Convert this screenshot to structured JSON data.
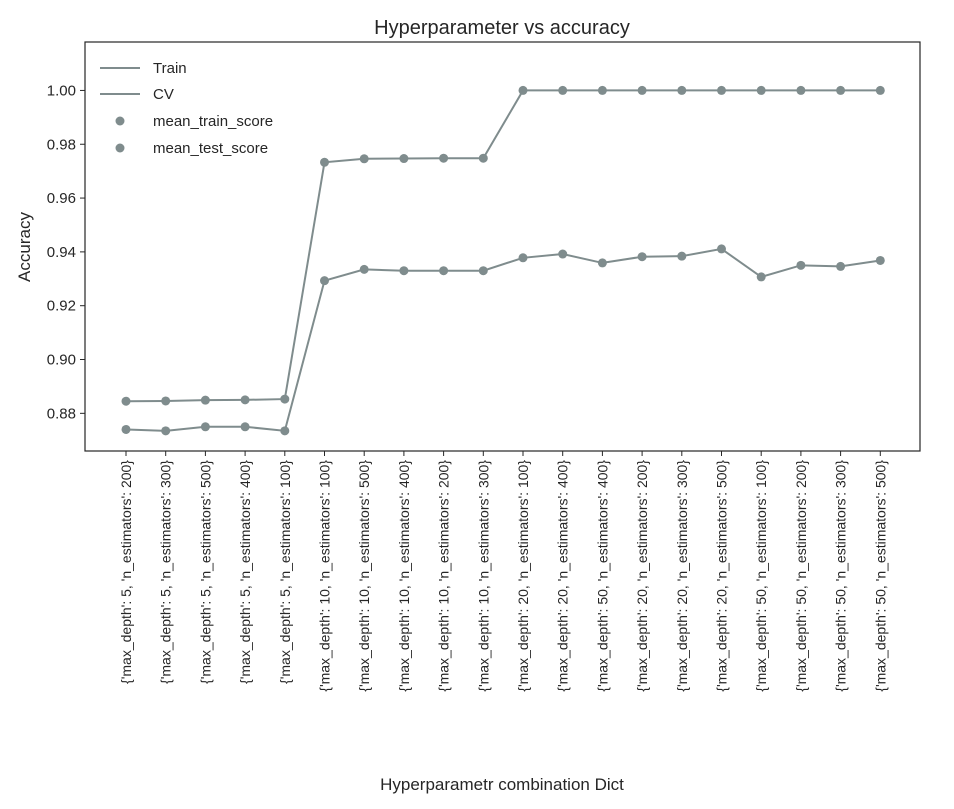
{
  "chart_data": {
    "type": "line",
    "title": "Hyperparameter vs accuracy",
    "xlabel": "Hyperparametr combination Dict",
    "ylabel": "Accuracy",
    "ylim": [
      0.866,
      1.018
    ],
    "yticks": [
      0.88,
      0.9,
      0.92,
      0.94,
      0.96,
      0.98,
      1.0
    ],
    "ytick_labels": [
      "0.88",
      "0.90",
      "0.92",
      "0.94",
      "0.96",
      "0.98",
      "1.00"
    ],
    "grid": false,
    "legend_position": "top-left",
    "colors": {
      "series": "#7f8c8d",
      "axes": "#262626"
    },
    "categories": [
      "{'max_depth': 5, 'n_estimators': 200}",
      "{'max_depth': 5, 'n_estimators': 300}",
      "{'max_depth': 5, 'n_estimators': 500}",
      "{'max_depth': 5, 'n_estimators': 400}",
      "{'max_depth': 5, 'n_estimators': 100}",
      "{'max_depth': 10, 'n_estimators': 100}",
      "{'max_depth': 10, 'n_estimators': 500}",
      "{'max_depth': 10, 'n_estimators': 400}",
      "{'max_depth': 10, 'n_estimators': 200}",
      "{'max_depth': 10, 'n_estimators': 300}",
      "{'max_depth': 20, 'n_estimators': 100}",
      "{'max_depth': 20, 'n_estimators': 400}",
      "{'max_depth': 50, 'n_estimators': 400}",
      "{'max_depth': 20, 'n_estimators': 200}",
      "{'max_depth': 20, 'n_estimators': 300}",
      "{'max_depth': 20, 'n_estimators': 500}",
      "{'max_depth': 50, 'n_estimators': 100}",
      "{'max_depth': 50, 'n_estimators': 200}",
      "{'max_depth': 50, 'n_estimators': 300}",
      "{'max_depth': 50, 'n_estimators': 500}"
    ],
    "series": [
      {
        "name": "Train",
        "marker_name": "mean_train_score",
        "values": [
          0.8845,
          0.8846,
          0.8849,
          0.885,
          0.8853,
          0.9733,
          0.9746,
          0.9747,
          0.9748,
          0.9748,
          1.0,
          1.0,
          1.0,
          1.0,
          1.0,
          1.0,
          1.0,
          1.0,
          1.0,
          1.0
        ]
      },
      {
        "name": "CV",
        "marker_name": "mean_test_score",
        "values": [
          0.874,
          0.8735,
          0.875,
          0.875,
          0.8735,
          0.9293,
          0.9335,
          0.933,
          0.933,
          0.933,
          0.9378,
          0.9392,
          0.9359,
          0.9382,
          0.9384,
          0.9411,
          0.9307,
          0.935,
          0.9346,
          0.9368
        ]
      }
    ]
  }
}
